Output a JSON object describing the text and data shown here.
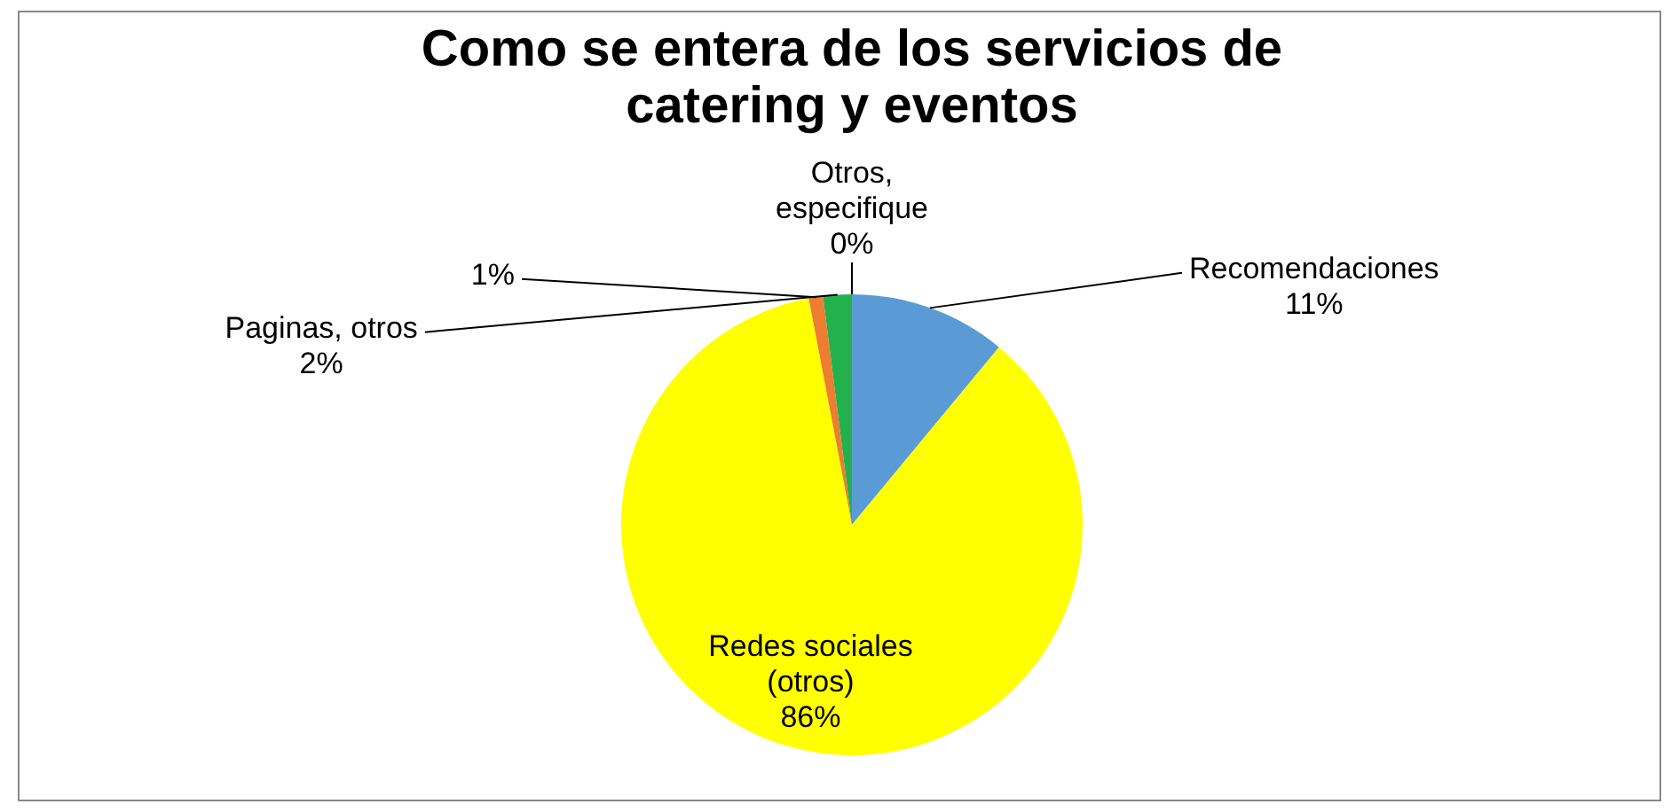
{
  "chart_data": {
    "type": "pie",
    "title": "Como se entera de los servicios de catering y eventos",
    "categories": [
      "Recomendaciones",
      "Redes sociales (otros)",
      null,
      "Paginas, otros",
      "Otros, especifique"
    ],
    "values": [
      11,
      86,
      1,
      2,
      0
    ],
    "colors": [
      "#5b9bd5",
      "#ffff00",
      "#ed7d31",
      "#22b14c",
      "#a5a5a5"
    ],
    "value_labels": [
      "11%",
      "86%",
      "1%",
      "2%",
      "0%"
    ]
  }
}
